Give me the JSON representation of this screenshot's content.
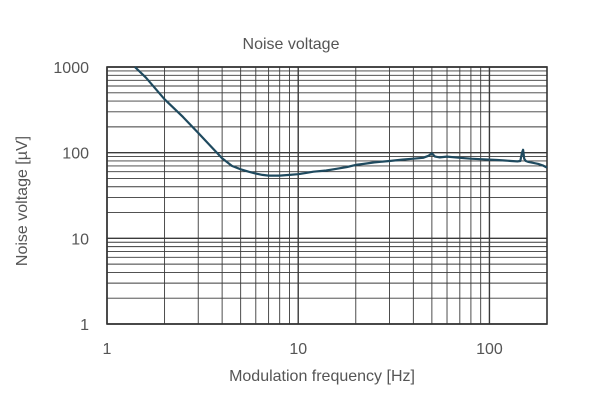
{
  "chart_data": {
    "type": "line",
    "title": "Noise voltage",
    "xlabel": "Modulation frequency [Hz]",
    "ylabel": "Noise voltage [µV]",
    "x_scale": "log",
    "y_scale": "log",
    "xlim": [
      1,
      200
    ],
    "ylim": [
      1,
      1000
    ],
    "grid": true,
    "legend": "none",
    "x_ticks": [
      {
        "value": 1,
        "label": "1"
      },
      {
        "value": 10,
        "label": "10"
      },
      {
        "value": 100,
        "label": "100"
      }
    ],
    "y_ticks": [
      {
        "value": 1,
        "label": "1"
      },
      {
        "value": 10,
        "label": "10"
      },
      {
        "value": 100,
        "label": "100"
      },
      {
        "value": 1000,
        "label": "1000"
      }
    ],
    "colors": {
      "line": "#1f4a5f",
      "grid": "#3a3a3a",
      "text": "#555555"
    },
    "series": [
      {
        "x": [
          1.4,
          1.6,
          2.0,
          2.5,
          3.0,
          3.5,
          4.0,
          4.5,
          5.0,
          5.5,
          6.0,
          6.5,
          7.0,
          7.5,
          8.0,
          9.0,
          10.0,
          11.0,
          12.0,
          14.0,
          16.0,
          18.0,
          20.0,
          22.0,
          25.0,
          30.0,
          35.0,
          40.0,
          45.0,
          48.0,
          50.0,
          52.0,
          55.0,
          60.0,
          70.0,
          80.0,
          90.0,
          100.0,
          110.0,
          120.0,
          130.0,
          140.0,
          145.0,
          148.0,
          150.0,
          152.0,
          155.0,
          160.0,
          170.0,
          180.0,
          190.0,
          200.0
        ],
        "y": [
          1000,
          750,
          420,
          260,
          170,
          118,
          86,
          70,
          64,
          60,
          57,
          55,
          54,
          54,
          54,
          55,
          56,
          58,
          60,
          62,
          65,
          68,
          72,
          74,
          77,
          80,
          83,
          85,
          87,
          92,
          98,
          90,
          88,
          90,
          87,
          85,
          84,
          83,
          82,
          81,
          80,
          79,
          80,
          100,
          108,
          85,
          80,
          78,
          76,
          74,
          71,
          67
        ]
      }
    ]
  }
}
